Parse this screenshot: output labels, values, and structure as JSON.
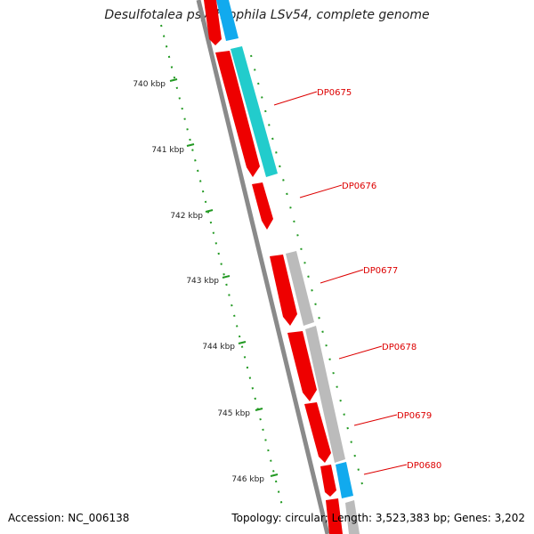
{
  "title": "Desulfotalea psychrophila LSv54, complete genome",
  "accession_label": "Accession: NC_006138",
  "summary_label": "Topology: circular; Length: 3,523,383 bp; Genes: 3,202",
  "colors": {
    "forward_gene": "#ee0000",
    "cds_blue": "#11aaee",
    "cds_cyan": "#22cccc",
    "cds_gray": "#bbbbbb",
    "backbone": "#8a8a8a",
    "tick_green": "#229922",
    "label_red": "#dd0000"
  },
  "kbp_ticks": [
    "740 kbp",
    "741 kbp",
    "742 kbp",
    "743 kbp",
    "744 kbp",
    "745 kbp",
    "746 kbp"
  ],
  "gene_labels": [
    "DP0675",
    "DP0676",
    "DP0677",
    "DP0678",
    "DP0679",
    "DP0680"
  ]
}
